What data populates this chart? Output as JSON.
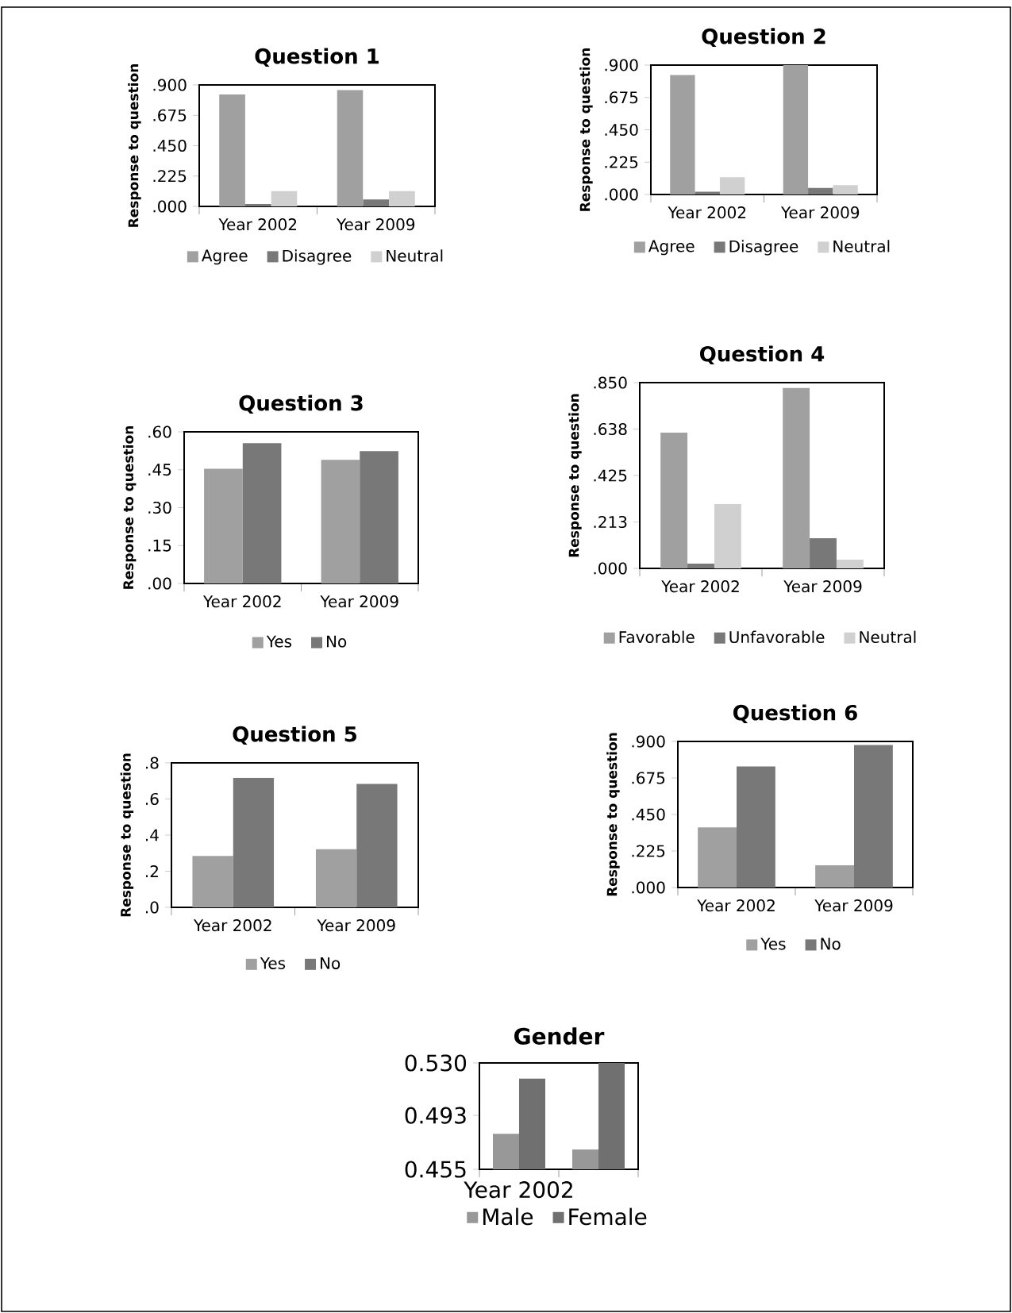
{
  "chart_data": [
    {
      "type": "bar",
      "title": "Question 1",
      "ylabel": "Response to question",
      "categories": [
        "Year 2002",
        "Year 2009"
      ],
      "legend": "bottom",
      "ylim": [
        0,
        0.9
      ],
      "yticks": [
        {
          "value": 0,
          "label": ".000"
        },
        {
          "value": 0.225,
          "label": ".225"
        },
        {
          "value": 0.45,
          "label": ".450"
        },
        {
          "value": 0.675,
          "label": ".675"
        },
        {
          "value": 0.9,
          "label": ".900"
        }
      ],
      "series": [
        {
          "name": "Agree",
          "color": "#a0a0a0",
          "values": [
            0.83,
            0.862
          ]
        },
        {
          "name": "Disagree",
          "color": "#787878",
          "values": [
            0.018,
            0.051
          ]
        },
        {
          "name": "Neutral",
          "color": "#d0d0d0",
          "values": [
            0.113,
            0.113
          ]
        }
      ]
    },
    {
      "type": "bar",
      "title": "Question 2",
      "ylabel": "Response to question",
      "categories": [
        "Year 2002",
        "Year 2009"
      ],
      "legend": "bottom",
      "ylim": [
        0,
        0.9
      ],
      "yticks": [
        {
          "value": 0,
          "label": ".000"
        },
        {
          "value": 0.225,
          "label": ".225"
        },
        {
          "value": 0.45,
          "label": ".450"
        },
        {
          "value": 0.675,
          "label": ".675"
        },
        {
          "value": 0.9,
          "label": ".900"
        }
      ],
      "series": [
        {
          "name": "Agree",
          "color": "#a0a0a0",
          "values": [
            0.831,
            0.9
          ]
        },
        {
          "name": "Disagree",
          "color": "#787878",
          "values": [
            0.019,
            0.046
          ]
        },
        {
          "name": "Neutral",
          "color": "#d0d0d0",
          "values": [
            0.12,
            0.065
          ]
        }
      ]
    },
    {
      "type": "bar",
      "title": "Question 3",
      "ylabel": "Response to question",
      "categories": [
        "Year 2002",
        "Year 2009"
      ],
      "legend": "bottom",
      "ylim": [
        0,
        0.6
      ],
      "yticks": [
        {
          "value": 0,
          "label": ".00"
        },
        {
          "value": 0.15,
          "label": ".15"
        },
        {
          "value": 0.3,
          "label": ".30"
        },
        {
          "value": 0.45,
          "label": ".45"
        },
        {
          "value": 0.6,
          "label": ".60"
        }
      ],
      "series": [
        {
          "name": "Yes",
          "color": "#a0a0a0",
          "values": [
            0.454,
            0.489
          ]
        },
        {
          "name": "No",
          "color": "#787878",
          "values": [
            0.555,
            0.524
          ]
        }
      ]
    },
    {
      "type": "bar",
      "title": "Question 4",
      "ylabel": "Response to question",
      "categories": [
        "Year 2002",
        "Year 2009"
      ],
      "legend": "bottom",
      "ylim": [
        0,
        0.85
      ],
      "yticks": [
        {
          "value": 0,
          "label": ".000"
        },
        {
          "value": 0.2125,
          "label": ".213"
        },
        {
          "value": 0.425,
          "label": ".425"
        },
        {
          "value": 0.6375,
          "label": ".638"
        },
        {
          "value": 0.85,
          "label": ".850"
        }
      ],
      "series": [
        {
          "name": "Favorable",
          "color": "#a0a0a0",
          "values": [
            0.621,
            0.826
          ]
        },
        {
          "name": "Unfavorable",
          "color": "#787878",
          "values": [
            0.022,
            0.138
          ]
        },
        {
          "name": "Neutral",
          "color": "#d0d0d0",
          "values": [
            0.294,
            0.04
          ]
        }
      ]
    },
    {
      "type": "bar",
      "title": "Question 5",
      "ylabel": "Response to question",
      "categories": [
        "Year 2002",
        "Year 2009"
      ],
      "legend": "bottom",
      "ylim": [
        0,
        0.8
      ],
      "yticks": [
        {
          "value": 0,
          "label": ".0"
        },
        {
          "value": 0.2,
          "label": ".2"
        },
        {
          "value": 0.4,
          "label": ".4"
        },
        {
          "value": 0.6,
          "label": ".6"
        },
        {
          "value": 0.8,
          "label": ".8"
        }
      ],
      "series": [
        {
          "name": "Yes",
          "color": "#a0a0a0",
          "values": [
            0.285,
            0.322
          ]
        },
        {
          "name": "No",
          "color": "#787878",
          "values": [
            0.718,
            0.684
          ]
        }
      ]
    },
    {
      "type": "bar",
      "title": "Question 6",
      "ylabel": "Response to question",
      "categories": [
        "Year 2002",
        "Year 2009"
      ],
      "legend": "bottom",
      "ylim": [
        0,
        0.9
      ],
      "yticks": [
        {
          "value": 0,
          "label": ".000"
        },
        {
          "value": 0.225,
          "label": ".225"
        },
        {
          "value": 0.45,
          "label": ".450"
        },
        {
          "value": 0.675,
          "label": ".675"
        },
        {
          "value": 0.9,
          "label": ".900"
        }
      ],
      "series": [
        {
          "name": "Yes",
          "color": "#a0a0a0",
          "values": [
            0.37,
            0.137
          ]
        },
        {
          "name": "No",
          "color": "#787878",
          "values": [
            0.746,
            0.878
          ]
        }
      ]
    },
    {
      "type": "bar",
      "title": "Gender",
      "categories": [
        "Year 2002",
        null
      ],
      "legend": "bottom",
      "ylim": [
        0.455,
        0.53
      ],
      "yticks": [
        {
          "value": 0.455,
          "label": "0.455"
        },
        {
          "value": 0.493,
          "label": "0.493"
        },
        {
          "value": 0.53,
          "label": "0.530"
        }
      ],
      "series": [
        {
          "name": "Male",
          "color": "#989898",
          "values": [
            0.48,
            0.469
          ]
        },
        {
          "name": "Female",
          "color": "#707070",
          "values": [
            0.519,
            0.53
          ]
        }
      ]
    }
  ]
}
